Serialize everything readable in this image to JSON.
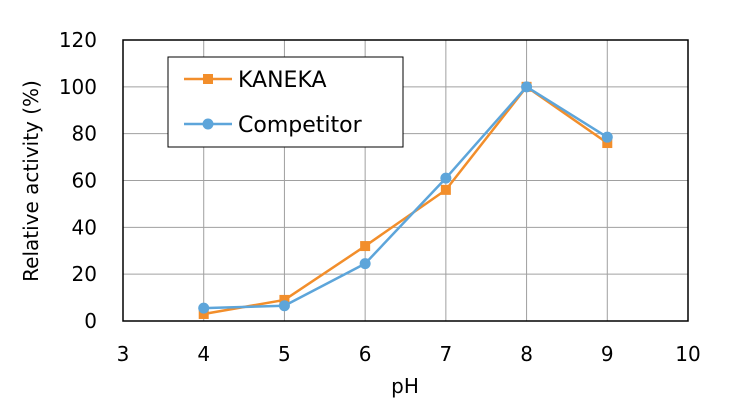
{
  "chart_data": {
    "type": "line",
    "xlabel": "pH",
    "ylabel": "Relative activity (%)",
    "xlim": [
      3,
      10
    ],
    "ylim": [
      0,
      120
    ],
    "xticks": [
      "3",
      "4",
      "5",
      "6",
      "7",
      "8",
      "9",
      "10"
    ],
    "yticks": [
      "0",
      "20",
      "40",
      "60",
      "80",
      "100",
      "120"
    ],
    "grid": true,
    "legend_position": "top-left",
    "series": [
      {
        "name": "KANEKA",
        "color": "#F28E2B",
        "marker": "square",
        "x": [
          4,
          5,
          6,
          7,
          8,
          9
        ],
        "y": [
          3,
          9,
          32,
          56,
          100,
          76
        ]
      },
      {
        "name": "Competitor",
        "color": "#5DA5DA",
        "marker": "circle",
        "x": [
          4,
          5,
          6,
          7,
          8,
          9
        ],
        "y": [
          5.5,
          6.5,
          24.5,
          61,
          100,
          78.5
        ]
      }
    ]
  }
}
